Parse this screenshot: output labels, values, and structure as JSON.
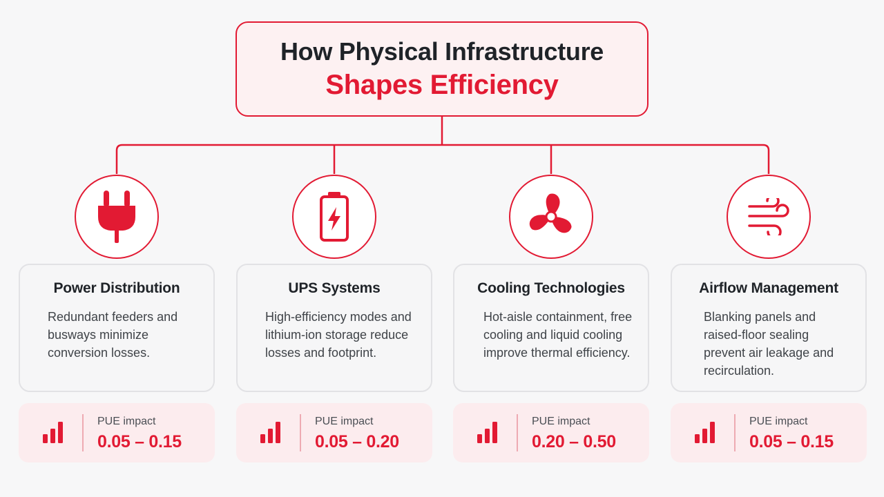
{
  "header": {
    "title_line1": "How Physical Infrastructure",
    "title_line2": "Shapes Efficiency"
  },
  "colors": {
    "accent": "#e21a33",
    "card_background": "#f6f6f7",
    "impact_background": "#fcecee"
  },
  "pillars": [
    {
      "icon": "plug-icon",
      "title": "Power Distribution",
      "description": "Redundant feeders and busways minimize conversion losses.",
      "impact_label": "PUE impact",
      "impact_value": "0.05 – 0.15"
    },
    {
      "icon": "battery-icon",
      "title": "UPS Systems",
      "description": "High-efficiency modes and lithium-ion storage reduce losses and footprint.",
      "impact_label": "PUE impact",
      "impact_value": "0.05 – 0.20"
    },
    {
      "icon": "fan-icon",
      "title": "Cooling Technologies",
      "description": "Hot-aisle containment, free cooling and liquid cooling improve thermal efficiency.",
      "impact_label": "PUE impact",
      "impact_value": "0.20 – 0.50"
    },
    {
      "icon": "wind-icon",
      "title": "Airflow Management",
      "description": "Blanking panels and raised-floor sealing prevent air leakage and recirculation.",
      "impact_label": "PUE impact",
      "impact_value": "0.05 – 0.15"
    }
  ]
}
